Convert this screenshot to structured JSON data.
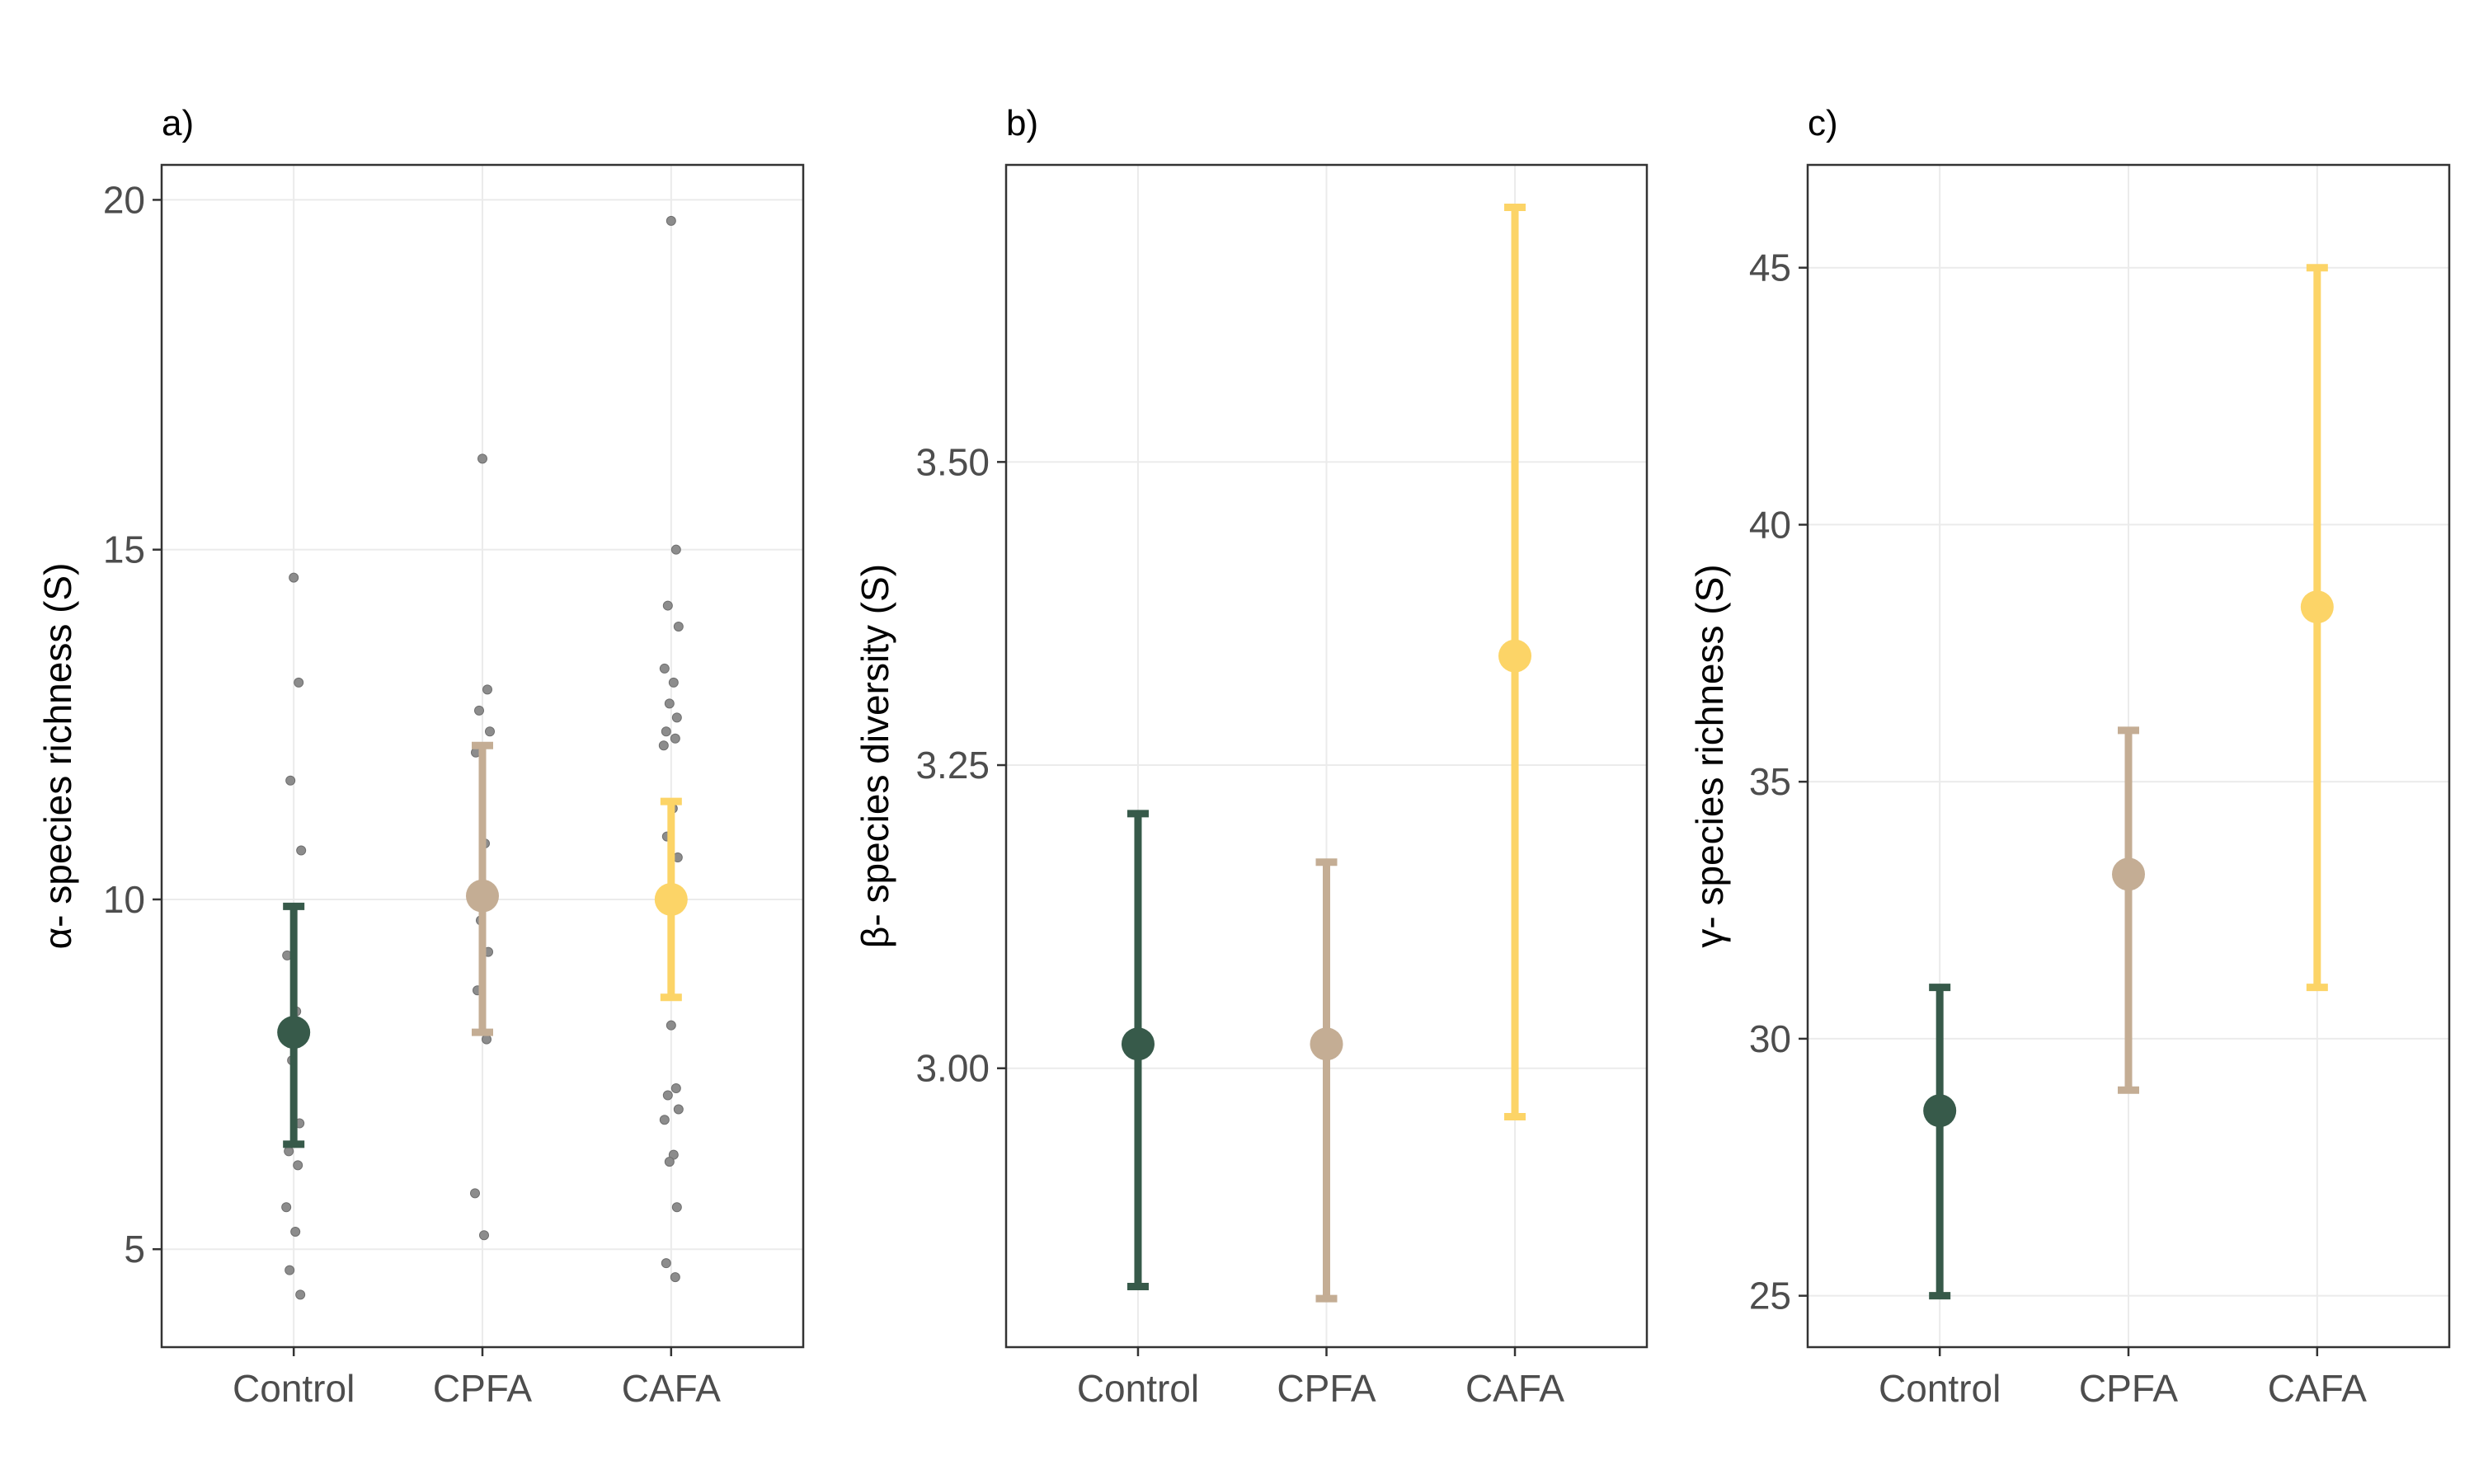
{
  "colors": {
    "Control": "#375a4a",
    "CPFA": "#c4ad94",
    "CAFA": "#fcd467",
    "raw_points": "#8c8c8c",
    "grid": "#ebebeb",
    "frame": "#333333"
  },
  "chart_data": [
    {
      "type": "scatter",
      "panel_label": "a)",
      "ylabel": "α- species richness (S)",
      "xlabel": "",
      "categories": [
        "Control",
        "CPFA",
        "CAFA"
      ],
      "ylim": [
        3.6,
        20.5
      ],
      "yticks": [
        5,
        10,
        15,
        20
      ],
      "ytick_labels": [
        "5",
        "10",
        "15",
        "20"
      ],
      "grid": true,
      "means": [
        8.1,
        10.05,
        10.0
      ],
      "ci_lower": [
        6.5,
        8.1,
        8.6
      ],
      "ci_upper": [
        9.9,
        12.2,
        11.4
      ],
      "raw_points": [
        [
          14.6,
          13.1,
          11.7,
          10.7,
          9.2,
          8.4,
          7.7,
          6.8,
          6.4,
          6.2,
          5.6,
          5.25,
          4.7,
          4.35
        ],
        [
          16.3,
          13.0,
          12.7,
          12.4,
          12.1,
          10.8,
          9.7,
          9.25,
          8.7,
          8.0,
          5.8,
          5.2
        ],
        [
          19.7,
          15.0,
          14.2,
          13.9,
          13.3,
          13.1,
          12.8,
          12.6,
          12.4,
          12.3,
          12.2,
          11.3,
          10.9,
          10.6,
          8.2,
          7.3,
          7.2,
          7.0,
          6.85,
          6.35,
          6.25,
          5.6,
          4.8,
          4.6
        ]
      ]
    },
    {
      "type": "scatter",
      "panel_label": "b)",
      "ylabel": "β- species diversity (S)",
      "xlabel": "",
      "categories": [
        "Control",
        "CPFA",
        "CAFA"
      ],
      "ylim": [
        2.77,
        3.745
      ],
      "yticks": [
        3.0,
        3.25,
        3.5
      ],
      "ytick_labels": [
        "3.00",
        "3.25",
        "3.50"
      ],
      "grid": true,
      "means": [
        3.02,
        3.02,
        3.34
      ],
      "ci_lower": [
        2.82,
        2.81,
        2.96
      ],
      "ci_upper": [
        3.21,
        3.17,
        3.71
      ]
    },
    {
      "type": "scatter",
      "panel_label": "c)",
      "ylabel": "γ- species richness (S)",
      "xlabel": "",
      "categories": [
        "Control",
        "CPFA",
        "CAFA"
      ],
      "ylim": [
        24.0,
        47.0
      ],
      "yticks": [
        25,
        30,
        35,
        40,
        45
      ],
      "ytick_labels": [
        "25",
        "30",
        "35",
        "40",
        "45"
      ],
      "grid": true,
      "means": [
        28.6,
        33.2,
        38.4
      ],
      "ci_lower": [
        25.0,
        29.0,
        31.0
      ],
      "ci_upper": [
        31.0,
        36.0,
        45.0
      ]
    }
  ]
}
